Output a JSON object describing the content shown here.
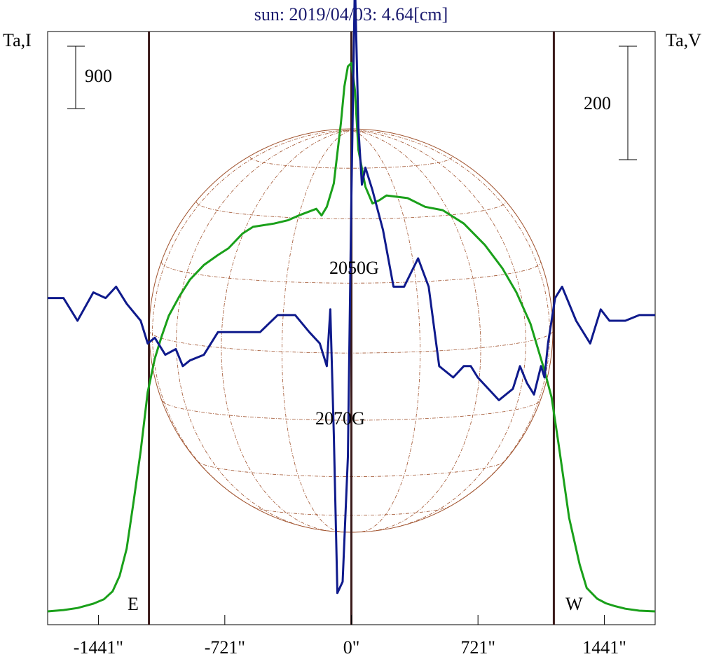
{
  "title": "sun: 2019/04/03: 4.64[cm]",
  "left_axis_label": "Ta,I",
  "right_axis_label": "Ta,V",
  "scale_bars": {
    "left": "900",
    "right": "200"
  },
  "annotations": {
    "max_field": "2050G",
    "min_field": "2070G",
    "east": "E",
    "west": "W"
  },
  "colors": {
    "title": "#1a1a6e",
    "intensity": "#1aa01a",
    "polarization": "#0f1a8c",
    "disk": "#a0522d",
    "limb_lines": "#3a1a1a"
  },
  "chart_data": {
    "type": "line",
    "title": "sun: 2019/04/03: 4.64[cm]",
    "xlabel": "",
    "ylabel_left": "Ta,I",
    "ylabel_right": "Ta,V",
    "xlim": [
      -1730,
      1730
    ],
    "x_ticks": [
      -1441,
      -721,
      0,
      721,
      1441
    ],
    "x_tick_labels": [
      "-1441\"",
      "-721\"",
      "0\"",
      "721\"",
      "1441\""
    ],
    "limb_x": [
      -1153,
      1153
    ],
    "series": [
      {
        "color": "#1aa01a",
        "x": [
          -1730,
          -1640,
          -1560,
          -1470,
          -1410,
          -1360,
          -1320,
          -1280,
          -1240,
          -1200,
          -1160,
          -1150,
          -1120,
          -1080,
          -1040,
          -980,
          -920,
          -840,
          -760,
          -700,
          -620,
          -560,
          -440,
          -360,
          -300,
          -200,
          -170,
          -140,
          -100,
          -60,
          -40,
          -20,
          0,
          20,
          40,
          80,
          120,
          160,
          200,
          320,
          420,
          520,
          640,
          700,
          760,
          860,
          940,
          1020,
          1100,
          1140,
          1180,
          1240,
          1300,
          1340,
          1400,
          1450,
          1500,
          1560,
          1640,
          1730
        ],
        "y": [
          0,
          20,
          50,
          115,
          180,
          300,
          530,
          940,
          1650,
          2400,
          3280,
          3400,
          3780,
          4120,
          4420,
          4710,
          4960,
          5180,
          5330,
          5430,
          5650,
          5750,
          5800,
          5850,
          5920,
          6020,
          5920,
          6050,
          6400,
          7300,
          7850,
          8150,
          8200,
          7800,
          6900,
          6350,
          6100,
          6150,
          6220,
          6180,
          6050,
          6000,
          5800,
          5640,
          5480,
          5130,
          4770,
          4300,
          3600,
          3200,
          2500,
          1400,
          700,
          350,
          190,
          120,
          80,
          40,
          10,
          0
        ]
      },
      {
        "color": "#0f1a8c",
        "x": [
          -1730,
          -1640,
          -1560,
          -1470,
          -1400,
          -1340,
          -1280,
          -1200,
          -1160,
          -1120,
          -1060,
          -1000,
          -960,
          -920,
          -840,
          -760,
          -680,
          -600,
          -520,
          -420,
          -320,
          -240,
          -180,
          -140,
          -120,
          -100,
          -80,
          -50,
          -20,
          0,
          20,
          40,
          60,
          80,
          120,
          180,
          240,
          300,
          380,
          440,
          500,
          580,
          640,
          680,
          720,
          840,
          920,
          960,
          1000,
          1040,
          1080,
          1100,
          1120,
          1160,
          1200,
          1280,
          1360,
          1420,
          1470,
          1560,
          1640,
          1730
        ],
        "y": [
          40,
          40,
          0,
          50,
          40,
          60,
          30,
          0,
          -40,
          -30,
          -60,
          -50,
          -80,
          -70,
          -60,
          -20,
          -20,
          -20,
          -20,
          10,
          10,
          -20,
          -40,
          -80,
          20,
          -200,
          -480,
          -460,
          -240,
          220,
          600,
          340,
          240,
          270,
          230,
          160,
          60,
          60,
          110,
          60,
          -80,
          -100,
          -80,
          -80,
          -100,
          -140,
          -120,
          -80,
          -110,
          -130,
          -80,
          -100,
          -40,
          40,
          60,
          0,
          -40,
          20,
          0,
          0,
          10,
          10
        ]
      }
    ]
  }
}
